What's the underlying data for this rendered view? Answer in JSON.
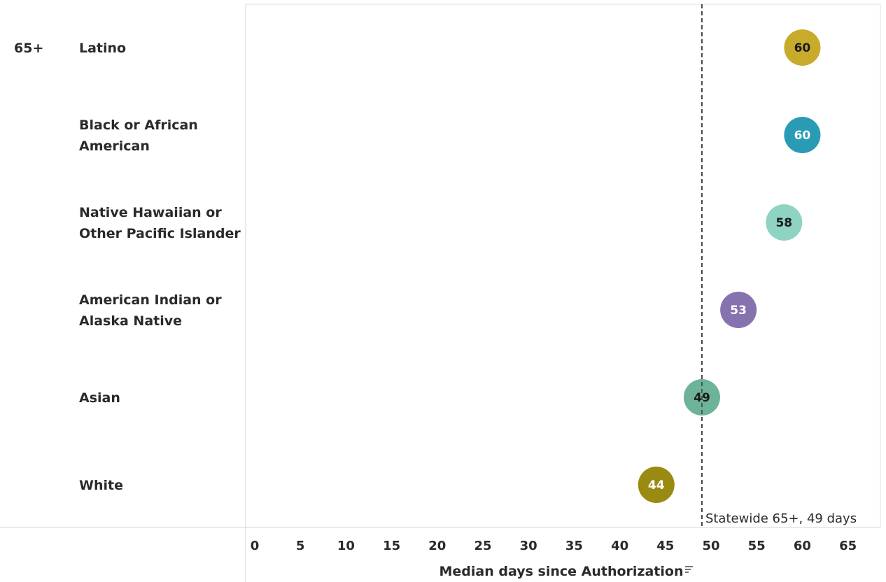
{
  "chart_data": {
    "type": "scatter",
    "group": "65+",
    "categories": [
      [
        "Latino"
      ],
      [
        "Black or African",
        "American"
      ],
      [
        "Native Hawaiian or",
        "Other Pacific Islander"
      ],
      [
        "American Indian or",
        "Alaska Native"
      ],
      [
        "Asian"
      ],
      [
        "White"
      ]
    ],
    "values": [
      60,
      60,
      58,
      53,
      49,
      44
    ],
    "colors": [
      "#c9ab2c",
      "#2a9bb4",
      "#8fd3c2",
      "#8772b0",
      "#6db398",
      "#9a8a12"
    ],
    "value_text_colors": [
      "#1a1a1a",
      "#ffffff",
      "#1a1a1a",
      "#ffffff",
      "#1a1a1a",
      "#ffffff"
    ],
    "xlabel": "Median days since Authorization",
    "xticks": [
      0,
      5,
      10,
      15,
      20,
      25,
      30,
      35,
      40,
      45,
      50,
      55,
      60,
      65
    ],
    "xlim": [
      0,
      68
    ],
    "reference_line": {
      "value": 49,
      "label": "Statewide 65+, 49 days"
    },
    "grid": false
  }
}
